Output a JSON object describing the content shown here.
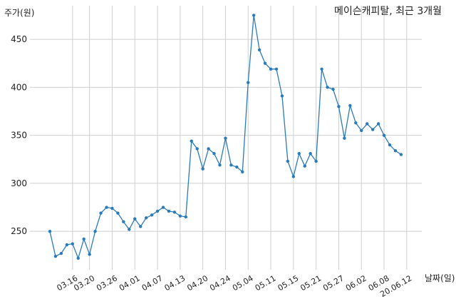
{
  "chart_data": {
    "type": "line",
    "title": "메이슨캐피탈, 최근 3개월",
    "ylabel": "주가(원)",
    "xlabel": "날짜(일)",
    "ylim": [
      210,
      485
    ],
    "yticks": [
      250,
      300,
      350,
      400,
      450
    ],
    "grid": true,
    "line_color": "#2b7bb9",
    "x_tick_labels": [
      "03.16",
      "03.20",
      "03.26",
      "04.01",
      "04.07",
      "04.13",
      "04.20",
      "04.24",
      "05.04",
      "05.11",
      "05.15",
      "05.21",
      "05.27",
      "06.02",
      "06.08",
      "20.06.12"
    ],
    "x_tick_index": [
      4,
      7,
      11,
      15,
      19,
      23,
      27,
      31,
      35,
      39,
      43,
      47,
      51,
      55,
      59,
      63
    ],
    "values": [
      250,
      224,
      227,
      236,
      237,
      222,
      242,
      226,
      250,
      269,
      275,
      274,
      269,
      260,
      252,
      263,
      255,
      264,
      267,
      271,
      275,
      271,
      270,
      266,
      265,
      344,
      336,
      315,
      336,
      331,
      319,
      347,
      319,
      317,
      312,
      405,
      475,
      439,
      425,
      419,
      419,
      391,
      323,
      307,
      331,
      318,
      331,
      323,
      419,
      400,
      398,
      380,
      347,
      381,
      363,
      355,
      362,
      356,
      362,
      350,
      340,
      334,
      330
    ]
  }
}
